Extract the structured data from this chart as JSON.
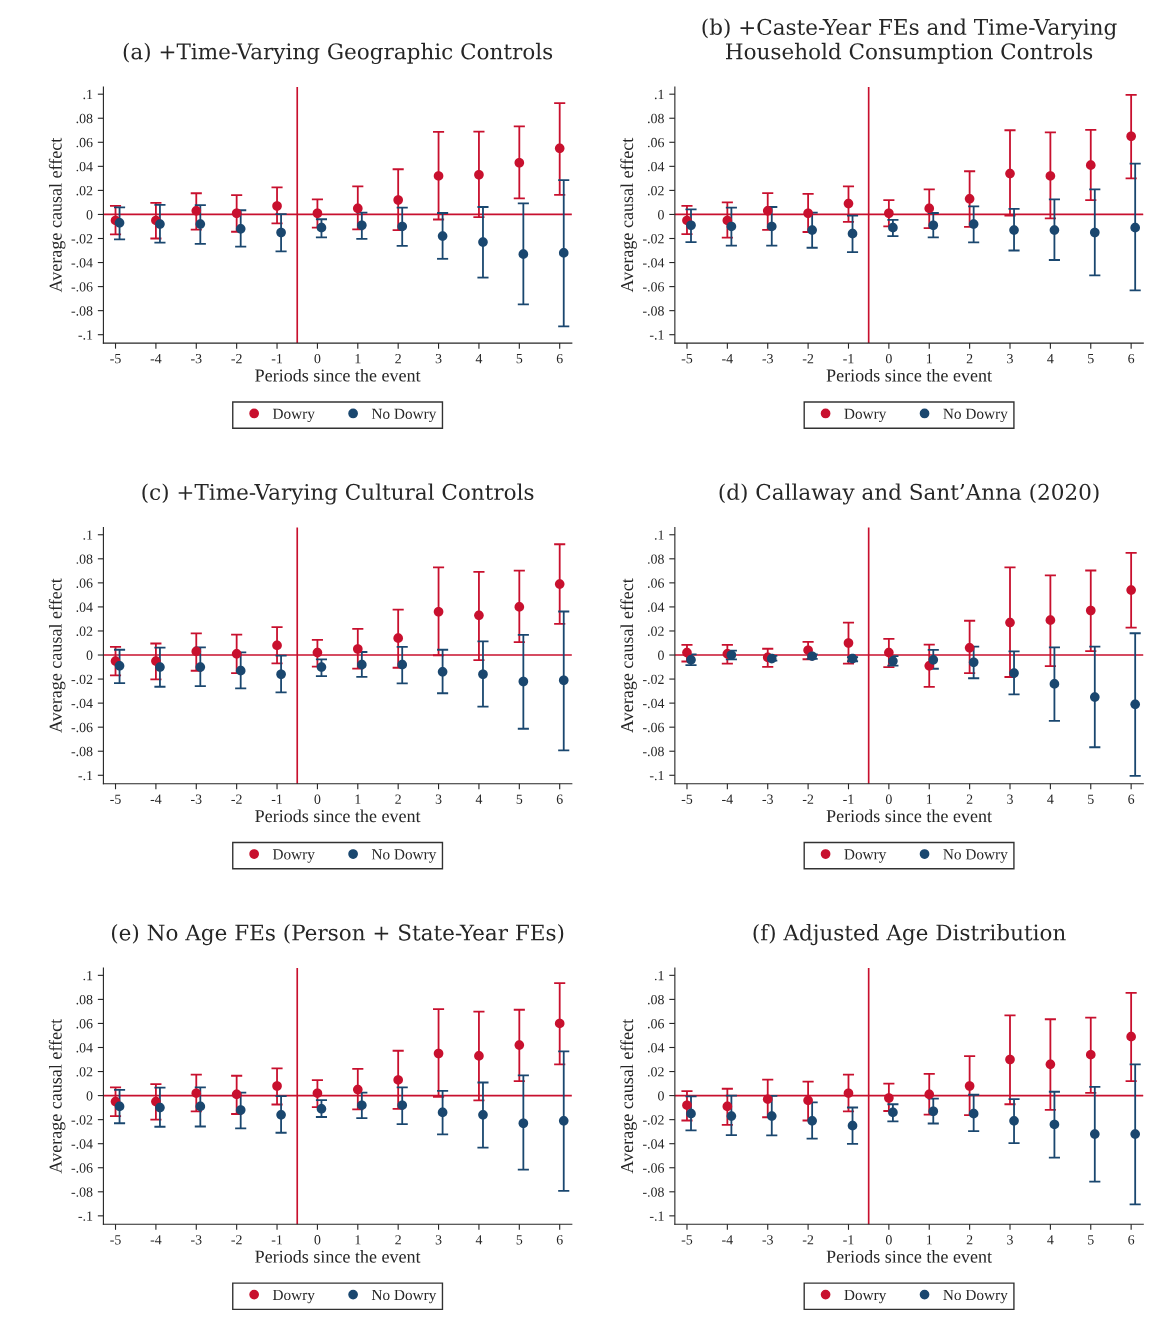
{
  "chart_data": [
    {
      "type": "scatter",
      "title": "(a) +Time-Varying Geographic Controls",
      "xlabel": "Periods since the event",
      "ylabel": "Average causal effect",
      "marker": "circle",
      "legend": "bottom",
      "grid": false,
      "xlim": [
        -5.3,
        6.3
      ],
      "xticks": [
        -5,
        -4,
        -3,
        -2,
        -1,
        0,
        1,
        2,
        3,
        4,
        5,
        6
      ],
      "ylim": [
        -0.107,
        0.106
      ],
      "yticks": [
        {
          "value": 0.1,
          "label": ".1"
        },
        {
          "value": 0.08,
          "label": ".08"
        },
        {
          "value": 0.06,
          "label": ".06"
        },
        {
          "value": 0.04,
          "label": ".04"
        },
        {
          "value": 0.02,
          "label": ".02"
        },
        {
          "value": 0,
          "label": "0"
        },
        {
          "value": -0.02,
          "label": "-.02"
        },
        {
          "value": -0.04,
          "label": "-.04"
        },
        {
          "value": -0.06,
          "label": "-.06"
        },
        {
          "value": -0.08,
          "label": "-.08"
        },
        {
          "value": -0.1,
          "label": "-.1"
        }
      ],
      "ref_lines": [
        {
          "axis": "x",
          "value": -0.5,
          "color": "#c8102e"
        },
        {
          "axis": "y",
          "value": 0,
          "color": "#c8102e"
        }
      ],
      "series": [
        {
          "name": "Dowry",
          "color": "#c8102e",
          "x": [
            -5,
            -4,
            -3,
            -2,
            -1,
            0,
            1,
            2,
            3,
            4,
            5,
            6
          ],
          "values": [
            -0.005,
            -0.005,
            0.003,
            0.001,
            0.007,
            0.001,
            0.005,
            0.012,
            0.032,
            0.033,
            0.043,
            0.055
          ],
          "errors": [
            [
              -0.0166,
              0.0072
            ],
            [
              -0.02,
              0.0097
            ],
            [
              -0.0126,
              0.0176
            ],
            [
              -0.0144,
              0.016
            ],
            [
              -0.0074,
              0.0225
            ],
            [
              -0.011,
              0.0126
            ],
            [
              -0.0124,
              0.0233
            ],
            [
              -0.0131,
              0.0376
            ],
            [
              -0.0042,
              0.0686
            ],
            [
              -0.0022,
              0.0688
            ],
            [
              0.0134,
              0.0733
            ],
            [
              0.0163,
              0.0926
            ]
          ]
        },
        {
          "name": "No Dowry",
          "color": "#1a476f",
          "x": [
            -4.9,
            -3.9,
            -2.9,
            -1.9,
            -0.9,
            0.1,
            1.1,
            2.1,
            3.1,
            4.1,
            5.1,
            6.1
          ],
          "values": [
            -0.007,
            -0.008,
            -0.008,
            -0.012,
            -0.015,
            -0.011,
            -0.009,
            -0.01,
            -0.018,
            -0.023,
            -0.033,
            -0.032
          ],
          "errors": [
            [
              -0.0208,
              0.0059
            ],
            [
              -0.0235,
              0.0079
            ],
            [
              -0.0245,
              0.0077
            ],
            [
              -0.0267,
              0.0035
            ],
            [
              -0.0307,
              0.0002
            ],
            [
              -0.019,
              -0.004
            ],
            [
              -0.0203,
              0.0015
            ],
            [
              -0.0262,
              0.0057
            ],
            [
              -0.0369,
              0.0012
            ],
            [
              -0.0525,
              0.0062
            ],
            [
              -0.0748,
              0.0092
            ],
            [
              -0.0931,
              0.0285
            ]
          ]
        }
      ]
    },
    {
      "type": "scatter",
      "title": "(b) +Caste-Year FEs and Time-Varying\nHousehold Consumption Controls",
      "xlabel": "Periods since the event",
      "ylabel": "Average causal effect",
      "marker": "circle",
      "legend": "bottom",
      "grid": false,
      "xlim": [
        -5.3,
        6.3
      ],
      "xticks": [
        -5,
        -4,
        -3,
        -2,
        -1,
        0,
        1,
        2,
        3,
        4,
        5,
        6
      ],
      "ylim": [
        -0.107,
        0.106
      ],
      "yticks": [
        {
          "value": 0.1,
          "label": ".1"
        },
        {
          "value": 0.08,
          "label": ".08"
        },
        {
          "value": 0.06,
          "label": ".06"
        },
        {
          "value": 0.04,
          "label": ".04"
        },
        {
          "value": 0.02,
          "label": ".02"
        },
        {
          "value": 0,
          "label": "0"
        },
        {
          "value": -0.02,
          "label": "-.02"
        },
        {
          "value": -0.04,
          "label": "-.04"
        },
        {
          "value": -0.06,
          "label": "-.06"
        },
        {
          "value": -0.08,
          "label": "-.08"
        },
        {
          "value": -0.1,
          "label": "-.1"
        }
      ],
      "ref_lines": [
        {
          "axis": "x",
          "value": -0.5,
          "color": "#c8102e"
        },
        {
          "axis": "y",
          "value": 0,
          "color": "#c8102e"
        }
      ],
      "series": [
        {
          "name": "Dowry",
          "color": "#c8102e",
          "x": [
            -5,
            -4,
            -3,
            -2,
            -1,
            0,
            1,
            2,
            3,
            4,
            5,
            6
          ],
          "values": [
            -0.005,
            -0.005,
            0.003,
            0.001,
            0.009,
            0.001,
            0.005,
            0.013,
            0.034,
            0.032,
            0.041,
            0.065
          ],
          "errors": [
            [
              -0.0163,
              0.0072
            ],
            [
              -0.0193,
              0.0101
            ],
            [
              -0.0129,
              0.0178
            ],
            [
              -0.0146,
              0.0171
            ],
            [
              -0.0062,
              0.0233
            ],
            [
              -0.0099,
              0.0119
            ],
            [
              -0.0114,
              0.0208
            ],
            [
              -0.0104,
              0.0359
            ],
            [
              -0.001,
              0.07
            ],
            [
              -0.0032,
              0.0683
            ],
            [
              0.0119,
              0.0703
            ],
            [
              0.03,
              0.0995
            ]
          ]
        },
        {
          "name": "No Dowry",
          "color": "#1a476f",
          "x": [
            -4.9,
            -3.9,
            -2.9,
            -1.9,
            -0.9,
            0.1,
            1.1,
            2.1,
            3.1,
            4.1,
            5.1,
            6.1
          ],
          "values": [
            -0.009,
            -0.01,
            -0.01,
            -0.013,
            -0.016,
            -0.011,
            -0.009,
            -0.008,
            -0.013,
            -0.013,
            -0.015,
            -0.011
          ],
          "errors": [
            [
              -0.023,
              0.0042
            ],
            [
              -0.026,
              0.0057
            ],
            [
              -0.026,
              0.0062
            ],
            [
              -0.0277,
              0.0015
            ],
            [
              -0.0314,
              -0.001
            ],
            [
              -0.018,
              -0.0045
            ],
            [
              -0.019,
              0.0012
            ],
            [
              -0.0233,
              0.0067
            ],
            [
              -0.03,
              0.0047
            ],
            [
              -0.0379,
              0.0126
            ],
            [
              -0.0507,
              0.0208
            ],
            [
              -0.0631,
              0.0423
            ]
          ]
        }
      ]
    },
    {
      "type": "scatter",
      "title": "(c) +Time-Varying Cultural Controls",
      "xlabel": "Periods since the event",
      "ylabel": "Average causal effect",
      "marker": "circle",
      "legend": "bottom",
      "grid": false,
      "xlim": [
        -5.3,
        6.3
      ],
      "xticks": [
        -5,
        -4,
        -3,
        -2,
        -1,
        0,
        1,
        2,
        3,
        4,
        5,
        6
      ],
      "ylim": [
        -0.107,
        0.106
      ],
      "yticks": [
        {
          "value": 0.1,
          "label": ".1"
        },
        {
          "value": 0.08,
          "label": ".08"
        },
        {
          "value": 0.06,
          "label": ".06"
        },
        {
          "value": 0.04,
          "label": ".04"
        },
        {
          "value": 0.02,
          "label": ".02"
        },
        {
          "value": 0,
          "label": "0"
        },
        {
          "value": -0.02,
          "label": "-.02"
        },
        {
          "value": -0.04,
          "label": "-.04"
        },
        {
          "value": -0.06,
          "label": "-.06"
        },
        {
          "value": -0.08,
          "label": "-.08"
        },
        {
          "value": -0.1,
          "label": "-.1"
        }
      ],
      "ref_lines": [
        {
          "axis": "x",
          "value": -0.5,
          "color": "#c8102e"
        },
        {
          "axis": "y",
          "value": 0,
          "color": "#c8102e"
        }
      ],
      "series": [
        {
          "name": "Dowry",
          "color": "#c8102e",
          "x": [
            -5,
            -4,
            -3,
            -2,
            -1,
            0,
            1,
            2,
            3,
            4,
            5,
            6
          ],
          "values": [
            -0.005,
            -0.005,
            0.003,
            0.001,
            0.008,
            0.002,
            0.005,
            0.014,
            0.036,
            0.033,
            0.04,
            0.059
          ],
          "errors": [
            [
              -0.017,
              0.0067
            ],
            [
              -0.0202,
              0.0096
            ],
            [
              -0.0131,
              0.018
            ],
            [
              -0.015,
              0.017
            ],
            [
              -0.0069,
              0.0232
            ],
            [
              -0.0096,
              0.0126
            ],
            [
              -0.0113,
              0.0217
            ],
            [
              -0.0106,
              0.0377
            ],
            [
              -0.0002,
              0.0729
            ],
            [
              -0.0042,
              0.0692
            ],
            [
              0.0108,
              0.0702
            ],
            [
              0.0259,
              0.0921
            ]
          ]
        },
        {
          "name": "No Dowry",
          "color": "#1a476f",
          "x": [
            -4.9,
            -3.9,
            -2.9,
            -1.9,
            -0.9,
            0.1,
            1.1,
            2.1,
            3.1,
            4.1,
            5.1,
            6.1
          ],
          "values": [
            -0.009,
            -0.01,
            -0.01,
            -0.013,
            -0.016,
            -0.01,
            -0.008,
            -0.008,
            -0.014,
            -0.016,
            -0.022,
            -0.021
          ],
          "errors": [
            [
              -0.0234,
              0.0044
            ],
            [
              -0.0264,
              0.0062
            ],
            [
              -0.0259,
              0.0064
            ],
            [
              -0.0278,
              0.0022
            ],
            [
              -0.031,
              -0.0005
            ],
            [
              -0.0175,
              -0.0037
            ],
            [
              -0.0182,
              0.0025
            ],
            [
              -0.0236,
              0.0067
            ],
            [
              -0.0318,
              0.0044
            ],
            [
              -0.0429,
              0.0113
            ],
            [
              -0.0613,
              0.0167
            ],
            [
              -0.0793,
              0.0362
            ]
          ]
        }
      ]
    },
    {
      "type": "scatter",
      "title": "(d) Callaway and Sant’Anna (2020)",
      "xlabel": "Periods since the event",
      "ylabel": "Average causal effect",
      "marker": "circle",
      "legend": "bottom",
      "grid": false,
      "xlim": [
        -5.3,
        6.3
      ],
      "xticks": [
        -5,
        -4,
        -3,
        -2,
        -1,
        0,
        1,
        2,
        3,
        4,
        5,
        6
      ],
      "ylim": [
        -0.107,
        0.106
      ],
      "yticks": [
        {
          "value": 0.1,
          "label": ".1"
        },
        {
          "value": 0.08,
          "label": ".08"
        },
        {
          "value": 0.06,
          "label": ".06"
        },
        {
          "value": 0.04,
          "label": ".04"
        },
        {
          "value": 0.02,
          "label": ".02"
        },
        {
          "value": 0,
          "label": "0"
        },
        {
          "value": -0.02,
          "label": "-.02"
        },
        {
          "value": -0.04,
          "label": "-.04"
        },
        {
          "value": -0.06,
          "label": "-.06"
        },
        {
          "value": -0.08,
          "label": "-.08"
        },
        {
          "value": -0.1,
          "label": "-.1"
        }
      ],
      "ref_lines": [
        {
          "axis": "x",
          "value": -0.5,
          "color": "#c8102e"
        },
        {
          "axis": "y",
          "value": 0,
          "color": "#c8102e"
        }
      ],
      "series": [
        {
          "name": "Dowry",
          "color": "#c8102e",
          "x": [
            -5,
            -4,
            -3,
            -2,
            -1,
            0,
            1,
            2,
            3,
            4,
            5,
            6
          ],
          "values": [
            0.002,
            0.001,
            -0.002,
            0.004,
            0.01,
            0.002,
            -0.009,
            0.006,
            0.027,
            0.029,
            0.037,
            0.054
          ],
          "errors": [
            [
              -0.0054,
              0.0084
            ],
            [
              -0.0072,
              0.0084
            ],
            [
              -0.0099,
              0.0052
            ],
            [
              -0.0035,
              0.0109
            ],
            [
              -0.0072,
              0.027
            ],
            [
              -0.0101,
              0.0134
            ],
            [
              -0.0265,
              0.0087
            ],
            [
              -0.0151,
              0.0285
            ],
            [
              -0.0183,
              0.0728
            ],
            [
              -0.0092,
              0.0663
            ],
            [
              0.0032,
              0.0703
            ],
            [
              0.0228,
              0.0849
            ]
          ]
        },
        {
          "name": "No Dowry",
          "color": "#1a476f",
          "x": [
            -4.9,
            -3.9,
            -2.9,
            -1.9,
            -0.9,
            0.1,
            1.1,
            2.1,
            3.1,
            4.1,
            5.1,
            6.1
          ],
          "values": [
            -0.004,
            0,
            -0.003,
            -0.001,
            -0.003,
            -0.005,
            -0.004,
            -0.006,
            -0.015,
            -0.024,
            -0.035,
            -0.041
          ],
          "errors": [
            [
              -0.0084,
              0.0005
            ],
            [
              -0.0037,
              0.0037
            ],
            [
              -0.0047,
              -0.0007
            ],
            [
              -0.0032,
              0.0005
            ],
            [
              -0.0052,
              -0.0017
            ],
            [
              -0.0089,
              -0.001
            ],
            [
              -0.0114,
              0.0042
            ],
            [
              -0.0193,
              0.0069
            ],
            [
              -0.0327,
              0.003
            ],
            [
              -0.0547,
              0.0064
            ],
            [
              -0.0767,
              0.0069
            ],
            [
              -0.1005,
              0.0181
            ]
          ]
        }
      ]
    },
    {
      "type": "scatter",
      "title": "(e) No Age FEs (Person + State-Year FEs)",
      "xlabel": "Periods since the event",
      "ylabel": "Average causal effect",
      "marker": "circle",
      "legend": "bottom",
      "grid": false,
      "xlim": [
        -5.3,
        6.3
      ],
      "xticks": [
        -5,
        -4,
        -3,
        -2,
        -1,
        0,
        1,
        2,
        3,
        4,
        5,
        6
      ],
      "ylim": [
        -0.107,
        0.106
      ],
      "yticks": [
        {
          "value": 0.1,
          "label": ".1"
        },
        {
          "value": 0.08,
          "label": ".08"
        },
        {
          "value": 0.06,
          "label": ".06"
        },
        {
          "value": 0.04,
          "label": ".04"
        },
        {
          "value": 0.02,
          "label": ".02"
        },
        {
          "value": 0,
          "label": "0"
        },
        {
          "value": -0.02,
          "label": "-.02"
        },
        {
          "value": -0.04,
          "label": "-.04"
        },
        {
          "value": -0.06,
          "label": "-.06"
        },
        {
          "value": -0.08,
          "label": "-.08"
        },
        {
          "value": -0.1,
          "label": "-.1"
        }
      ],
      "ref_lines": [
        {
          "axis": "x",
          "value": -0.5,
          "color": "#c8102e"
        },
        {
          "axis": "y",
          "value": 0,
          "color": "#c8102e"
        }
      ],
      "series": [
        {
          "name": "Dowry",
          "color": "#c8102e",
          "x": [
            -5,
            -4,
            -3,
            -2,
            -1,
            0,
            1,
            2,
            3,
            4,
            5,
            6
          ],
          "values": [
            -0.005,
            -0.005,
            0.002,
            0.001,
            0.008,
            0.002,
            0.005,
            0.013,
            0.035,
            0.033,
            0.042,
            0.06
          ],
          "errors": [
            [
              -0.017,
              0.0069
            ],
            [
              -0.02,
              0.0096
            ],
            [
              -0.0131,
              0.0175
            ],
            [
              -0.0153,
              0.0165
            ],
            [
              -0.0074,
              0.0227
            ],
            [
              -0.0096,
              0.0128
            ],
            [
              -0.0114,
              0.0222
            ],
            [
              -0.0111,
              0.0373
            ],
            [
              -0.001,
              0.0719
            ],
            [
              -0.004,
              0.0699
            ],
            [
              0.0121,
              0.0714
            ],
            [
              0.0259,
              0.0936
            ]
          ]
        },
        {
          "name": "No Dowry",
          "color": "#1a476f",
          "x": [
            -4.9,
            -3.9,
            -2.9,
            -1.9,
            -0.9,
            0.1,
            1.1,
            2.1,
            3.1,
            4.1,
            5.1,
            6.1
          ],
          "values": [
            -0.009,
            -0.01,
            -0.009,
            -0.012,
            -0.016,
            -0.011,
            -0.008,
            -0.008,
            -0.014,
            -0.016,
            -0.023,
            -0.021
          ],
          "errors": [
            [
              -0.023,
              0.0047
            ],
            [
              -0.0259,
              0.0067
            ],
            [
              -0.0257,
              0.0069
            ],
            [
              -0.0272,
              0.0025
            ],
            [
              -0.0309,
              -0.0005
            ],
            [
              -0.0178,
              -0.0037
            ],
            [
              -0.0188,
              0.0025
            ],
            [
              -0.0237,
              0.0069
            ],
            [
              -0.0323,
              0.004
            ],
            [
              -0.0432,
              0.0109
            ],
            [
              -0.0615,
              0.0168
            ],
            [
              -0.0793,
              0.0368
            ]
          ]
        }
      ]
    },
    {
      "type": "scatter",
      "title": "(f) Adjusted Age Distribution",
      "xlabel": "Periods since the event",
      "ylabel": "Average causal effect",
      "marker": "circle",
      "legend": "bottom",
      "grid": false,
      "xlim": [
        -5.3,
        6.3
      ],
      "xticks": [
        -5,
        -4,
        -3,
        -2,
        -1,
        0,
        1,
        2,
        3,
        4,
        5,
        6
      ],
      "ylim": [
        -0.107,
        0.106
      ],
      "yticks": [
        {
          "value": 0.1,
          "label": ".1"
        },
        {
          "value": 0.08,
          "label": ".08"
        },
        {
          "value": 0.06,
          "label": ".06"
        },
        {
          "value": 0.04,
          "label": ".04"
        },
        {
          "value": 0.02,
          "label": ".02"
        },
        {
          "value": 0,
          "label": "0"
        },
        {
          "value": -0.02,
          "label": "-.02"
        },
        {
          "value": -0.04,
          "label": "-.04"
        },
        {
          "value": -0.06,
          "label": "-.06"
        },
        {
          "value": -0.08,
          "label": "-.08"
        },
        {
          "value": -0.1,
          "label": "-.1"
        }
      ],
      "ref_lines": [
        {
          "axis": "x",
          "value": -0.5,
          "color": "#c8102e"
        },
        {
          "axis": "y",
          "value": 0,
          "color": "#c8102e"
        }
      ],
      "series": [
        {
          "name": "Dowry",
          "color": "#c8102e",
          "x": [
            -5,
            -4,
            -3,
            -2,
            -1,
            0,
            1,
            2,
            3,
            4,
            5,
            6
          ],
          "values": [
            -0.008,
            -0.009,
            -0.003,
            -0.004,
            0.002,
            -0.002,
            0.001,
            0.008,
            0.03,
            0.026,
            0.034,
            0.049
          ],
          "errors": [
            [
              -0.0207,
              0.0037
            ],
            [
              -0.0244,
              0.0057
            ],
            [
              -0.018,
              0.0133
            ],
            [
              -0.0207,
              0.0116
            ],
            [
              -0.0131,
              0.0175
            ],
            [
              -0.0128,
              0.0099
            ],
            [
              -0.0158,
              0.018
            ],
            [
              -0.0163,
              0.0328
            ],
            [
              -0.0072,
              0.0667
            ],
            [
              -0.0119,
              0.0635
            ],
            [
              0.0022,
              0.0649
            ],
            [
              0.0121,
              0.0854
            ]
          ]
        },
        {
          "name": "No Dowry",
          "color": "#1a476f",
          "x": [
            -4.9,
            -3.9,
            -2.9,
            -1.9,
            -0.9,
            0.1,
            1.1,
            2.1,
            3.1,
            4.1,
            5.1,
            6.1
          ],
          "values": [
            -0.015,
            -0.017,
            -0.017,
            -0.021,
            -0.025,
            -0.014,
            -0.013,
            -0.015,
            -0.021,
            -0.024,
            -0.032,
            -0.032
          ],
          "errors": [
            [
              -0.0289,
              -0.0007
            ],
            [
              -0.0328,
              0
            ],
            [
              -0.0331,
              -0.0002
            ],
            [
              -0.0358,
              -0.0057
            ],
            [
              -0.0402,
              -0.0099
            ],
            [
              -0.0215,
              -0.0072
            ],
            [
              -0.0232,
              -0.0025
            ],
            [
              -0.0296,
              0.0007
            ],
            [
              -0.0395,
              -0.003
            ],
            [
              -0.0516,
              0.0032
            ],
            [
              -0.0716,
              0.0072
            ],
            [
              -0.0904,
              0.0259
            ]
          ]
        }
      ]
    }
  ]
}
